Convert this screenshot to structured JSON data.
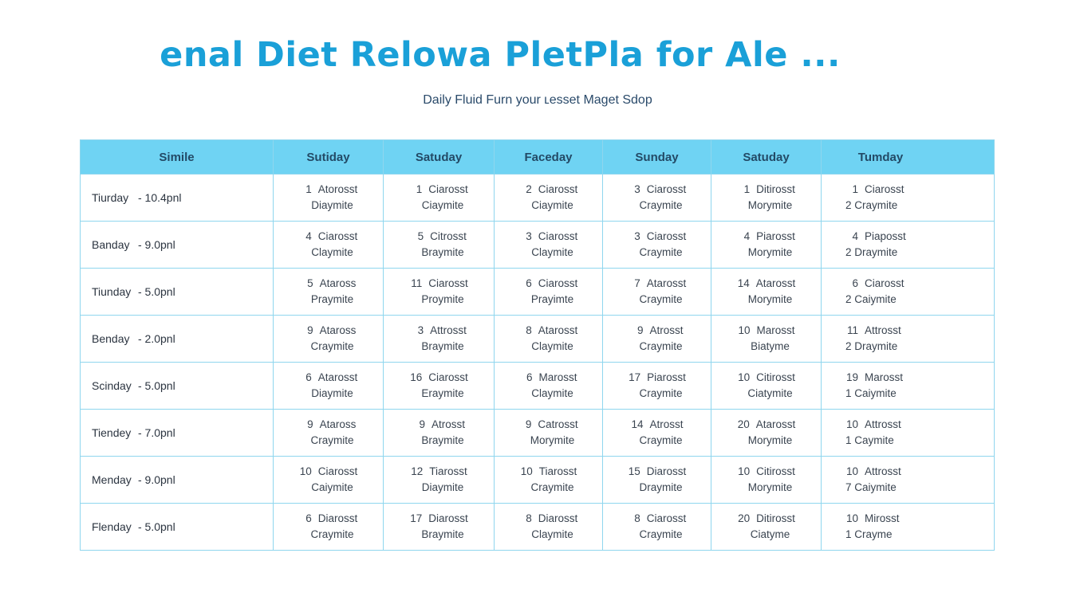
{
  "title": "enal Diet Relowa PletPla for Ale ...",
  "subtitle": "Daily Fluid Furn your ʟesset Maget Sdop",
  "table": {
    "headers": [
      "Simile",
      "Sutiday",
      "Satuday",
      "Faceday",
      "Sunday",
      "Satuday",
      "Tumday"
    ],
    "rows": [
      {
        "day": "Tiurday",
        "time": "- 10.4pnl",
        "cells": [
          [
            "1",
            "Atorosst",
            "Diaymite"
          ],
          [
            "1",
            "Ciarosst",
            "Ciaymite"
          ],
          [
            "2",
            "Ciarosst",
            "Ciaymite"
          ],
          [
            "3",
            "Ciarosst",
            "Craymite"
          ],
          [
            "1",
            "Ditirosst",
            "Morymite"
          ],
          [
            "1",
            "Ciarosst",
            "2 Craymite"
          ]
        ]
      },
      {
        "day": "Banday",
        "time": "- 9.0pnl",
        "cells": [
          [
            "4",
            "Ciarosst",
            "Claymite"
          ],
          [
            "5",
            "Citrosst",
            "Braymite"
          ],
          [
            "3",
            "Ciarosst",
            "Claymite"
          ],
          [
            "3",
            "Ciarosst",
            "Craymite"
          ],
          [
            "4",
            "Piarosst",
            "Morymite"
          ],
          [
            "4",
            "Piaposst",
            "2 Draymite"
          ]
        ]
      },
      {
        "day": "Tiunday",
        "time": "- 5.0pnl",
        "cells": [
          [
            "5",
            "Ataross",
            "Praymite"
          ],
          [
            "11",
            "Ciarosst",
            "Proymite"
          ],
          [
            "6",
            "Ciarosst",
            "Prayimte"
          ],
          [
            "7",
            "Atarosst",
            "Craymite"
          ],
          [
            "14",
            "Atarosst",
            "Morymite"
          ],
          [
            "6",
            "Ciarosst",
            "2 Caiymite"
          ]
        ]
      },
      {
        "day": "Benday",
        "time": "- 2.0pnl",
        "cells": [
          [
            "9",
            "Ataross",
            "Craymite"
          ],
          [
            "3",
            "Attrosst",
            "Braymite"
          ],
          [
            "8",
            "Atarosst",
            "Claymite"
          ],
          [
            "9",
            "Atrosst",
            "Craymite"
          ],
          [
            "10",
            "Marosst",
            "Biatyme"
          ],
          [
            "11",
            "Attrosst",
            "2 Draymite"
          ]
        ]
      },
      {
        "day": "Scinday",
        "time": "- 5.0pnl",
        "cells": [
          [
            "6",
            "Atarosst",
            "Diaymite"
          ],
          [
            "16",
            "Ciarosst",
            "Eraymite"
          ],
          [
            "6",
            "Marosst",
            "Claymite"
          ],
          [
            "17",
            "Piarosst",
            "Craymite"
          ],
          [
            "10",
            "Citirosst",
            "Ciatymite"
          ],
          [
            "19",
            "Marosst",
            "1 Caiymite"
          ]
        ]
      },
      {
        "day": "Tiendey",
        "time": "- 7.0pnl",
        "cells": [
          [
            "9",
            "Ataross",
            "Craymite"
          ],
          [
            "9",
            "Atrosst",
            "Braymite"
          ],
          [
            "9",
            "Catrosst",
            "Morymite"
          ],
          [
            "14",
            "Atrosst",
            "Craymite"
          ],
          [
            "20",
            "Atarosst",
            "Morymite"
          ],
          [
            "10",
            "Attrosst",
            "1 Caymite"
          ]
        ]
      },
      {
        "day": "Menday",
        "time": "- 9.0pnl",
        "cells": [
          [
            "10",
            "Ciarosst",
            "Caiymite"
          ],
          [
            "12",
            "Tiarosst",
            "Diaymite"
          ],
          [
            "10",
            "Tiarosst",
            "Craymite"
          ],
          [
            "15",
            "Diarosst",
            "Draymite"
          ],
          [
            "10",
            "Citirosst",
            "Morymite"
          ],
          [
            "10",
            "Attrosst",
            "7 Caiymite"
          ]
        ]
      },
      {
        "day": "Flenday",
        "time": "- 5.0pnl",
        "cells": [
          [
            "6",
            "Diarosst",
            "Craymite"
          ],
          [
            "17",
            "Diarosst",
            "Braymite"
          ],
          [
            "8",
            "Diarosst",
            "Claymite"
          ],
          [
            "8",
            "Ciarosst",
            "Craymite"
          ],
          [
            "20",
            "Ditirosst",
            "Ciatyme"
          ],
          [
            "10",
            "Mirosst",
            "1 Crayme"
          ]
        ]
      }
    ]
  }
}
